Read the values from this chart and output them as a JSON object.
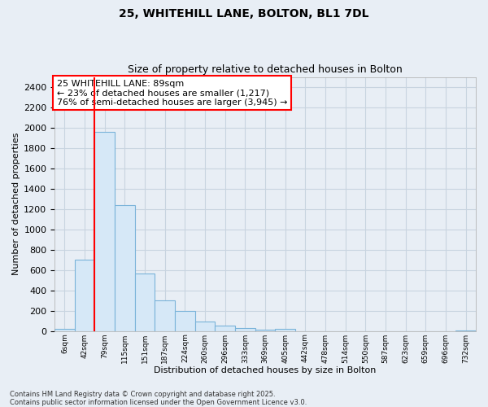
{
  "title_line1": "25, WHITEHILL LANE, BOLTON, BL1 7DL",
  "title_line2": "Size of property relative to detached houses in Bolton",
  "xlabel": "Distribution of detached houses by size in Bolton",
  "ylabel": "Number of detached properties",
  "annotation_title": "25 WHITEHILL LANE: 89sqm",
  "annotation_line2": "← 23% of detached houses are smaller (1,217)",
  "annotation_line3": "76% of semi-detached houses are larger (3,945) →",
  "footer_line1": "Contains HM Land Registry data © Crown copyright and database right 2025.",
  "footer_line2": "Contains public sector information licensed under the Open Government Licence v3.0.",
  "categories": [
    "6sqm",
    "42sqm",
    "79sqm",
    "115sqm",
    "151sqm",
    "187sqm",
    "224sqm",
    "260sqm",
    "296sqm",
    "333sqm",
    "369sqm",
    "405sqm",
    "442sqm",
    "478sqm",
    "514sqm",
    "550sqm",
    "587sqm",
    "623sqm",
    "659sqm",
    "696sqm",
    "732sqm"
  ],
  "values": [
    25,
    700,
    1960,
    1240,
    570,
    300,
    200,
    90,
    55,
    30,
    10,
    20,
    0,
    0,
    0,
    0,
    0,
    0,
    0,
    0,
    5
  ],
  "bar_color": "#d6e8f7",
  "bar_edge_color": "#7ab3d9",
  "red_line_x": 2.0,
  "ylim": [
    0,
    2500
  ],
  "yticks": [
    0,
    200,
    400,
    600,
    800,
    1000,
    1200,
    1400,
    1600,
    1800,
    2000,
    2200,
    2400
  ],
  "background_color": "#e8eef5",
  "plot_background": "#e8eef5",
  "grid_color": "#c8d4e0",
  "title_fontsize": 10,
  "subtitle_fontsize": 9,
  "annotation_fontsize": 8
}
